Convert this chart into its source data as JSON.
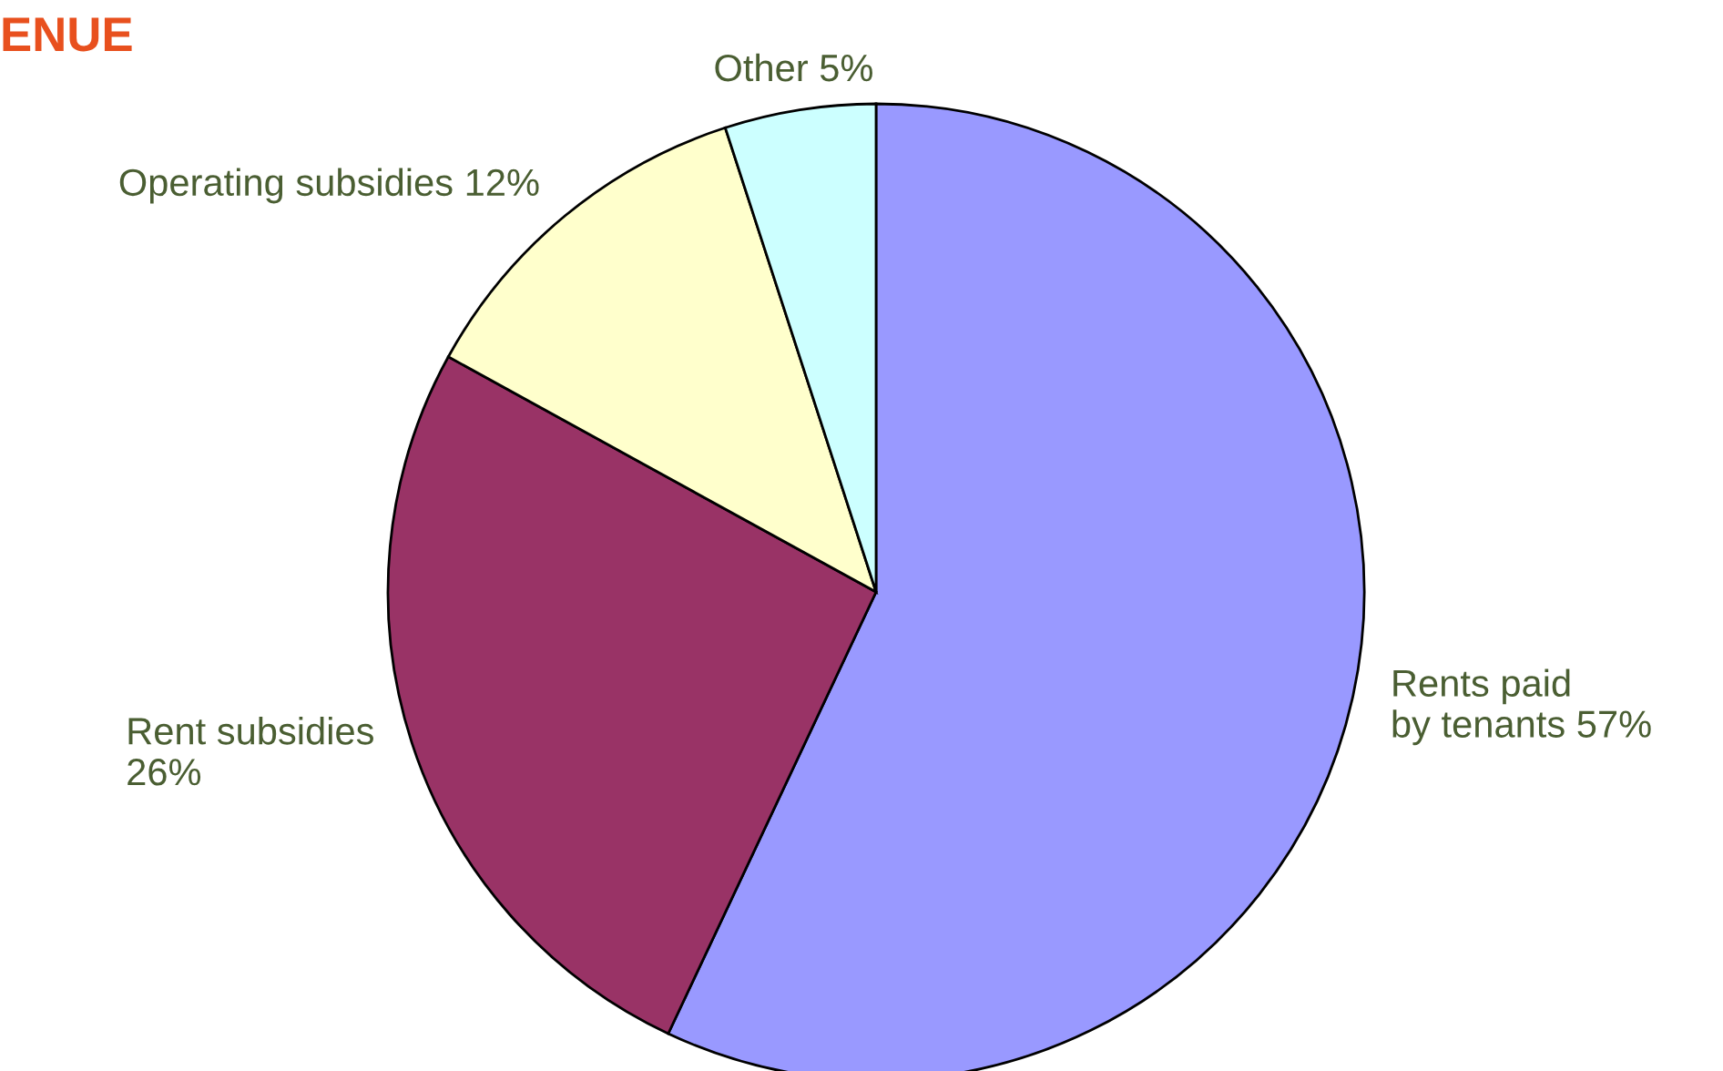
{
  "chart_data": {
    "type": "pie",
    "title": "ENUE",
    "categories": [
      "Rents paid\nby tenants",
      "Rent subsidies\n",
      "Operating subsidies",
      "Other"
    ],
    "values": [
      57,
      26,
      12,
      5
    ],
    "value_labels": [
      "57%",
      "26%",
      "12%",
      "5%"
    ],
    "colors": [
      "#9999ff",
      "#993366",
      "#ffffcc",
      "#ccffff"
    ],
    "legend": false
  }
}
